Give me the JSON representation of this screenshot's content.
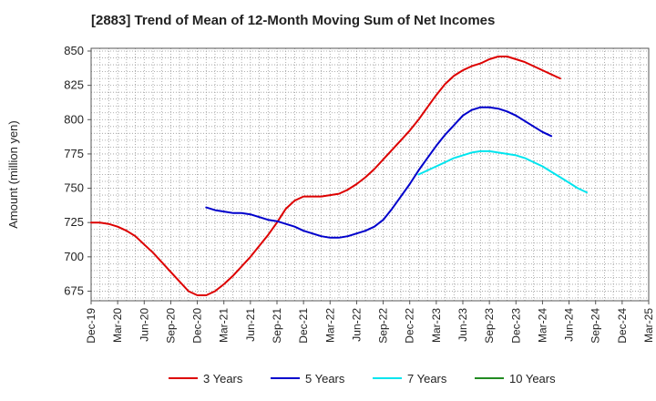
{
  "chart_data": {
    "type": "line",
    "title": "[2883]  Trend of Mean of 12-Month Moving Sum of Net Incomes",
    "xlabel": "",
    "ylabel": "Amount (million yen)",
    "ylim": [
      668,
      852
    ],
    "yticks": [
      675,
      700,
      725,
      750,
      775,
      800,
      825,
      850
    ],
    "xticks": [
      "Dec-19",
      "Mar-20",
      "Jun-20",
      "Sep-20",
      "Dec-20",
      "Mar-21",
      "Jun-21",
      "Sep-21",
      "Dec-21",
      "Mar-22",
      "Jun-22",
      "Sep-22",
      "Dec-22",
      "Mar-23",
      "Jun-23",
      "Sep-23",
      "Dec-23",
      "Mar-24",
      "Jun-24",
      "Sep-24",
      "Dec-24",
      "Mar-25"
    ],
    "grid": true,
    "legend_position": "bottom",
    "series": [
      {
        "name": "3 Years",
        "color": "#dd0000",
        "points": [
          [
            "Dec-19",
            725
          ],
          [
            "Jan-20",
            725
          ],
          [
            "Feb-20",
            724
          ],
          [
            "Mar-20",
            722
          ],
          [
            "Apr-20",
            719
          ],
          [
            "May-20",
            715
          ],
          [
            "Jun-20",
            709
          ],
          [
            "Jul-20",
            703
          ],
          [
            "Aug-20",
            696
          ],
          [
            "Sep-20",
            689
          ],
          [
            "Oct-20",
            682
          ],
          [
            "Nov-20",
            675
          ],
          [
            "Dec-20",
            672
          ],
          [
            "Jan-21",
            672
          ],
          [
            "Feb-21",
            675
          ],
          [
            "Mar-21",
            680
          ],
          [
            "Apr-21",
            686
          ],
          [
            "May-21",
            693
          ],
          [
            "Jun-21",
            700
          ],
          [
            "Jul-21",
            708
          ],
          [
            "Aug-21",
            716
          ],
          [
            "Sep-21",
            725
          ],
          [
            "Oct-21",
            735
          ],
          [
            "Nov-21",
            741
          ],
          [
            "Dec-21",
            744
          ],
          [
            "Jan-22",
            744
          ],
          [
            "Feb-22",
            744
          ],
          [
            "Mar-22",
            745
          ],
          [
            "Apr-22",
            746
          ],
          [
            "May-22",
            749
          ],
          [
            "Jun-22",
            753
          ],
          [
            "Jul-22",
            758
          ],
          [
            "Aug-22",
            764
          ],
          [
            "Sep-22",
            771
          ],
          [
            "Oct-22",
            778
          ],
          [
            "Nov-22",
            785
          ],
          [
            "Dec-22",
            792
          ],
          [
            "Jan-23",
            800
          ],
          [
            "Feb-23",
            809
          ],
          [
            "Mar-23",
            818
          ],
          [
            "Apr-23",
            826
          ],
          [
            "May-23",
            832
          ],
          [
            "Jun-23",
            836
          ],
          [
            "Jul-23",
            839
          ],
          [
            "Aug-23",
            841
          ],
          [
            "Sep-23",
            844
          ],
          [
            "Oct-23",
            846
          ],
          [
            "Nov-23",
            846
          ],
          [
            "Dec-23",
            844
          ],
          [
            "Jan-24",
            842
          ],
          [
            "Feb-24",
            839
          ],
          [
            "Mar-24",
            836
          ],
          [
            "Apr-24",
            833
          ],
          [
            "May-24",
            830
          ]
        ]
      },
      {
        "name": "5 Years",
        "color": "#0000cc",
        "points": [
          [
            "Jan-21",
            736
          ],
          [
            "Feb-21",
            734
          ],
          [
            "Mar-21",
            733
          ],
          [
            "Apr-21",
            732
          ],
          [
            "May-21",
            732
          ],
          [
            "Jun-21",
            731
          ],
          [
            "Jul-21",
            729
          ],
          [
            "Aug-21",
            727
          ],
          [
            "Sep-21",
            726
          ],
          [
            "Oct-21",
            724
          ],
          [
            "Nov-21",
            722
          ],
          [
            "Dec-21",
            719
          ],
          [
            "Jan-22",
            717
          ],
          [
            "Feb-22",
            715
          ],
          [
            "Mar-22",
            714
          ],
          [
            "Apr-22",
            714
          ],
          [
            "May-22",
            715
          ],
          [
            "Jun-22",
            717
          ],
          [
            "Jul-22",
            719
          ],
          [
            "Aug-22",
            722
          ],
          [
            "Sep-22",
            727
          ],
          [
            "Oct-22",
            735
          ],
          [
            "Nov-22",
            744
          ],
          [
            "Dec-22",
            753
          ],
          [
            "Jan-23",
            763
          ],
          [
            "Feb-23",
            772
          ],
          [
            "Mar-23",
            781
          ],
          [
            "Apr-23",
            789
          ],
          [
            "May-23",
            796
          ],
          [
            "Jun-23",
            803
          ],
          [
            "Jul-23",
            807
          ],
          [
            "Aug-23",
            809
          ],
          [
            "Sep-23",
            809
          ],
          [
            "Oct-23",
            808
          ],
          [
            "Nov-23",
            806
          ],
          [
            "Dec-23",
            803
          ],
          [
            "Jan-24",
            799
          ],
          [
            "Feb-24",
            795
          ],
          [
            "Mar-24",
            791
          ],
          [
            "Apr-24",
            788
          ]
        ]
      },
      {
        "name": "7 Years",
        "color": "#00e5ee",
        "points": [
          [
            "Jan-23",
            760
          ],
          [
            "Feb-23",
            763
          ],
          [
            "Mar-23",
            766
          ],
          [
            "Apr-23",
            769
          ],
          [
            "May-23",
            772
          ],
          [
            "Jun-23",
            774
          ],
          [
            "Jul-23",
            776
          ],
          [
            "Aug-23",
            777
          ],
          [
            "Sep-23",
            777
          ],
          [
            "Oct-23",
            776
          ],
          [
            "Nov-23",
            775
          ],
          [
            "Dec-23",
            774
          ],
          [
            "Jan-24",
            772
          ],
          [
            "Feb-24",
            769
          ],
          [
            "Mar-24",
            766
          ],
          [
            "Apr-24",
            762
          ],
          [
            "May-24",
            758
          ],
          [
            "Jun-24",
            754
          ],
          [
            "Jul-24",
            750
          ],
          [
            "Aug-24",
            747
          ]
        ]
      },
      {
        "name": "10 Years",
        "color": "#228b22",
        "points": []
      }
    ]
  }
}
